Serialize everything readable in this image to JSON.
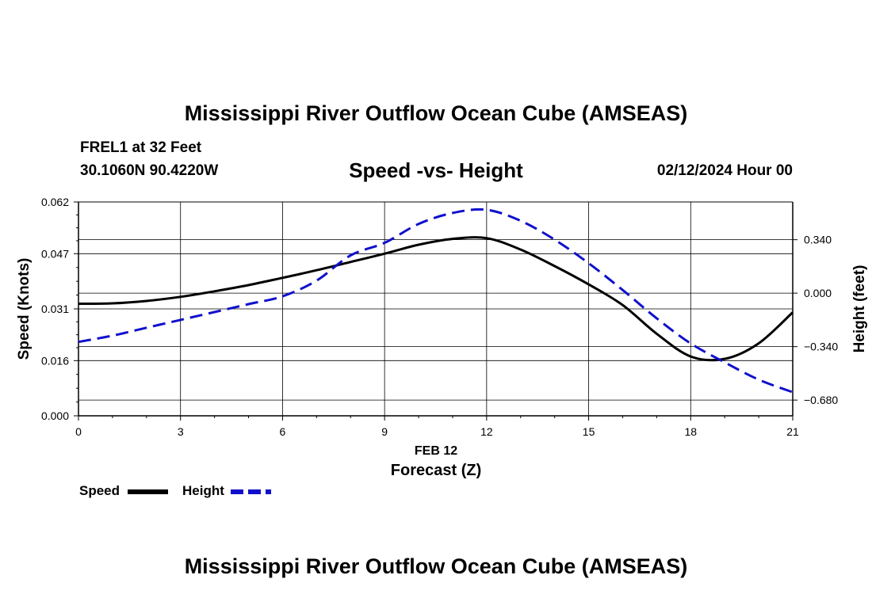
{
  "header": {
    "title": "Mississippi River Outflow Ocean Cube (AMSEAS)",
    "station": "FREL1 at 32 Feet",
    "coords": "30.1060N  90.4220W",
    "subtitle": "Speed -vs- Height",
    "datetime": "02/12/2024 Hour 00"
  },
  "footer": {
    "title": "Mississippi River Outflow Ocean Cube (AMSEAS)"
  },
  "chart_data": {
    "type": "line",
    "title": "Speed -vs- Height",
    "xlabel": "Forecast (Z)",
    "xdate_label": "FEB 12",
    "ylabel_left": "Speed (Knots)",
    "ylabel_right": "Height (feet)",
    "xlim": [
      0,
      21
    ],
    "ylim_left": [
      0,
      0.062
    ],
    "ylim_right": [
      -0.78,
      0.58
    ],
    "x_ticks": [
      0,
      3,
      6,
      9,
      12,
      15,
      18,
      21
    ],
    "x_tick_labels": [
      "0",
      "3",
      "6",
      "9",
      "12",
      "15",
      "18",
      "21"
    ],
    "y_left_ticks": [
      0.0,
      0.016,
      0.031,
      0.047,
      0.062
    ],
    "y_left_tick_labels": [
      "0.000",
      "0.016",
      "0.031",
      "0.047",
      "0.062"
    ],
    "y_right_ticks": [
      0.34,
      0.0,
      -0.34,
      -0.68
    ],
    "y_right_tick_labels": [
      "0.340",
      "0.000",
      "−0.340",
      "−0.680"
    ],
    "grid": true,
    "legend_position": "bottom-left",
    "colors": {
      "speed": "#000000",
      "height": "#1010cc"
    },
    "series": [
      {
        "name": "Speed",
        "axis": "left",
        "style": "solid",
        "x": [
          0,
          1,
          2,
          3,
          4,
          5,
          6,
          7,
          8,
          9,
          10,
          11,
          12,
          13,
          14,
          15,
          16,
          17,
          18,
          19,
          20,
          21
        ],
        "y": [
          0.0325,
          0.0326,
          0.0333,
          0.0345,
          0.0361,
          0.0379,
          0.04,
          0.0422,
          0.0446,
          0.047,
          0.0496,
          0.0513,
          0.0515,
          0.0482,
          0.0434,
          0.0381,
          0.0321,
          0.0238,
          0.0172,
          0.0165,
          0.021,
          0.03
        ]
      },
      {
        "name": "Height",
        "axis": "right",
        "style": "dashed",
        "x": [
          0,
          1,
          2,
          3,
          4,
          5,
          6,
          7,
          8,
          9,
          10,
          11,
          12,
          13,
          14,
          15,
          16,
          17,
          18,
          19,
          20,
          21
        ],
        "y": [
          -0.31,
          -0.27,
          -0.22,
          -0.17,
          -0.12,
          -0.07,
          -0.02,
          0.08,
          0.24,
          0.32,
          0.44,
          0.51,
          0.53,
          0.46,
          0.34,
          0.19,
          0.02,
          -0.16,
          -0.32,
          -0.44,
          -0.55,
          -0.63
        ]
      }
    ]
  }
}
